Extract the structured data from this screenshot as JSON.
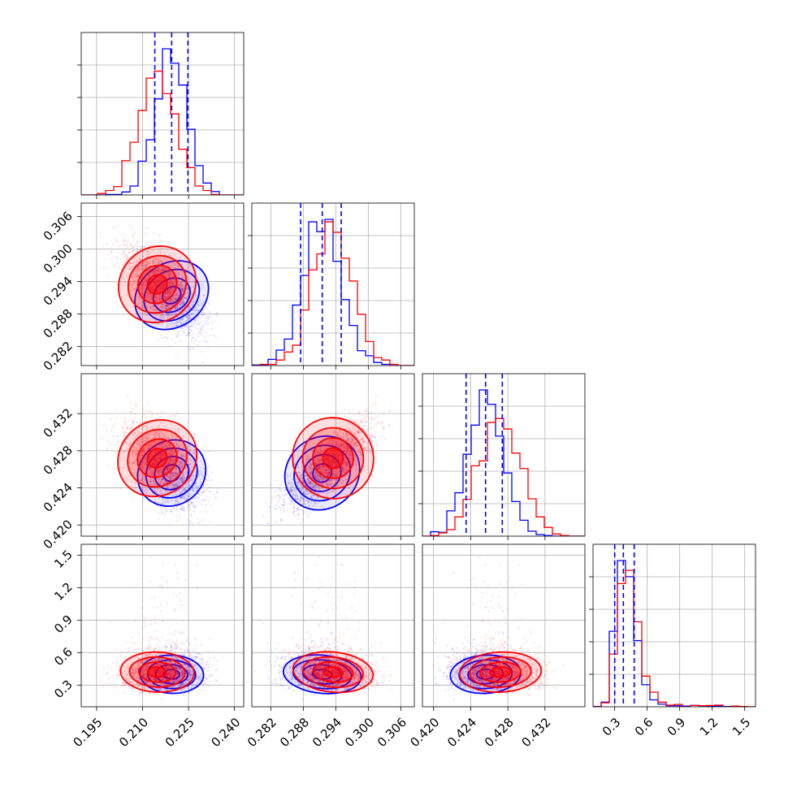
{
  "chart_data": {
    "type": "corner",
    "colors": {
      "series_a": "#0000ff",
      "series_b": "#ff0000",
      "grid": "#b0b0b0",
      "axes": "#000000"
    },
    "series": [
      {
        "name": "blue",
        "color": "#0000ff",
        "means": [
          0.2195,
          0.2915,
          0.4256,
          0.4
        ],
        "sds": [
          0.0052,
          0.0036,
          0.0019,
          0.085
        ],
        "quantiles_16_50_84": [
          [
            0.214,
            0.2195,
            0.2248
          ],
          [
            0.2875,
            0.2915,
            0.295
          ],
          [
            0.4235,
            0.4256,
            0.4274
          ],
          [
            0.3,
            0.38,
            0.48
          ]
        ]
      },
      {
        "name": "red",
        "color": "#ff0000",
        "means": [
          0.2148,
          0.2935,
          0.4272,
          0.42
        ],
        "sds": [
          0.006,
          0.0037,
          0.0022,
          0.09
        ]
      }
    ],
    "parameters": [
      {
        "range": [
          0.19,
          0.243
        ],
        "ticks": [
          "0.195",
          "0.210",
          "0.225",
          "0.240"
        ],
        "tick_values": [
          0.195,
          0.21,
          0.225,
          0.24
        ]
      },
      {
        "range": [
          0.2785,
          0.3085
        ],
        "ticks": [
          "0.282",
          "0.288",
          "0.294",
          "0.300",
          "0.306"
        ],
        "tick_values": [
          0.282,
          0.288,
          0.294,
          0.3,
          0.306
        ]
      },
      {
        "range": [
          0.4188,
          0.4363
        ],
        "ticks": [
          "0.420",
          "0.424",
          "0.428",
          "0.432"
        ],
        "tick_values": [
          0.42,
          0.424,
          0.428,
          0.432
        ]
      },
      {
        "range": [
          0.1,
          1.6
        ],
        "ticks": [
          "0.3",
          "0.6",
          "0.9",
          "1.2",
          "1.5"
        ],
        "tick_values": [
          0.3,
          0.6,
          0.9,
          1.2,
          1.5
        ]
      }
    ],
    "hist_quantile_lines": [
      [
        0.214,
        0.2195,
        0.2248
      ],
      [
        0.2875,
        0.2915,
        0.295
      ],
      [
        0.4235,
        0.4256,
        0.4274
      ],
      [
        0.3,
        0.38,
        0.48
      ]
    ],
    "title": "",
    "xlabel": "",
    "ylabel": "",
    "grid": true
  }
}
